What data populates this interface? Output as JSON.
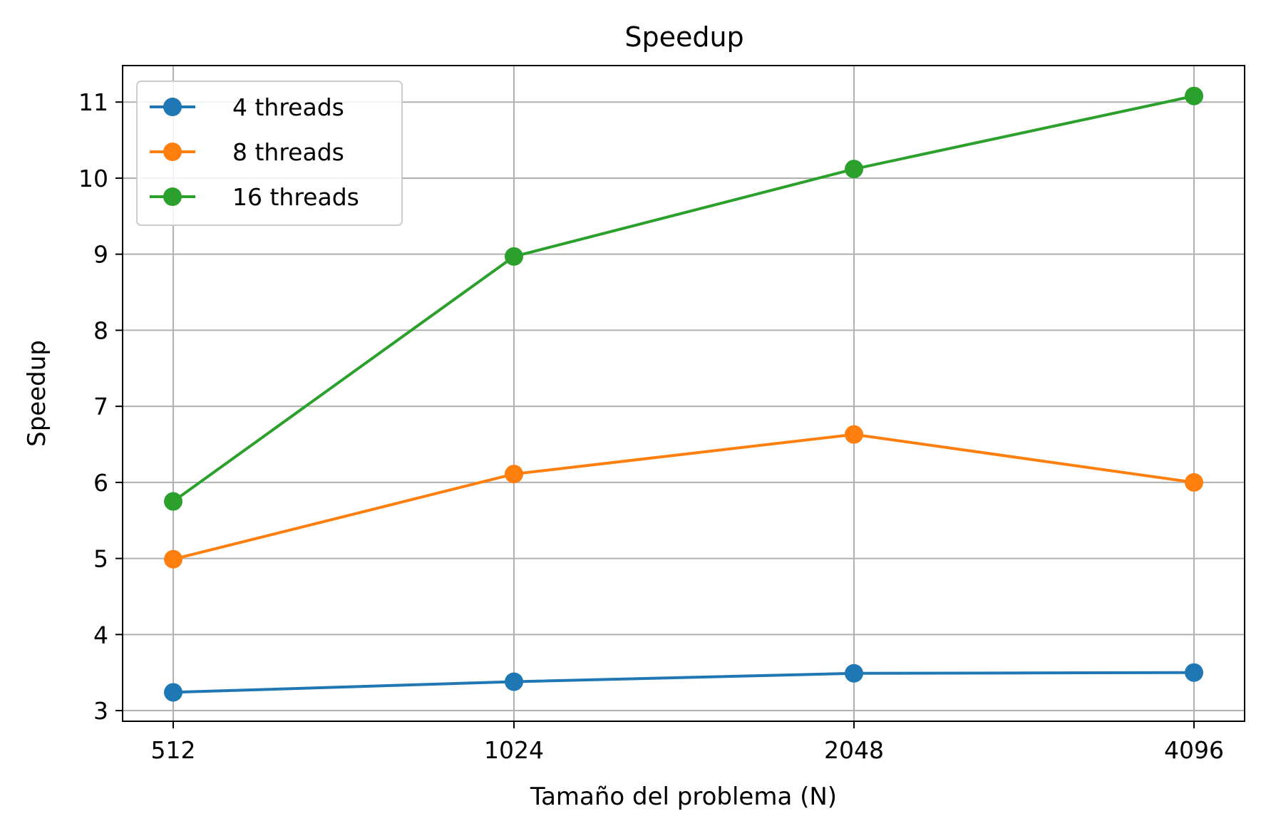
{
  "chart_data": {
    "type": "line",
    "title": "Speedup",
    "xlabel": "Tamaño del problema (N)",
    "ylabel": "Speedup",
    "categories": [
      "512",
      "1024",
      "2048",
      "4096"
    ],
    "yticks": [
      3,
      4,
      5,
      6,
      7,
      8,
      9,
      10,
      11
    ],
    "ylim": [
      2.86,
      11.48
    ],
    "grid": true,
    "legend_position": "upper-left",
    "series": [
      {
        "name": "4 threads",
        "color": "#1f77b4",
        "values": [
          3.24,
          3.38,
          3.49,
          3.5
        ]
      },
      {
        "name": "8 threads",
        "color": "#ff7f0e",
        "values": [
          4.99,
          6.11,
          6.63,
          6.0
        ]
      },
      {
        "name": "16 threads",
        "color": "#2ca02c",
        "values": [
          5.75,
          8.97,
          10.12,
          11.08
        ]
      }
    ]
  }
}
